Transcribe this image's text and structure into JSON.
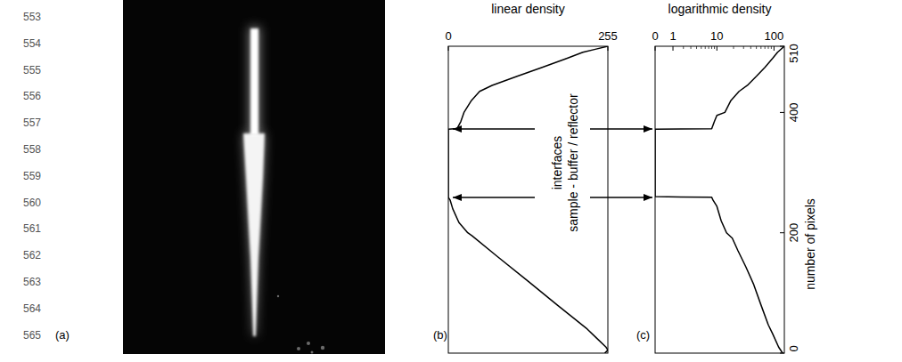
{
  "line_numbers": [
    553,
    554,
    555,
    556,
    557,
    558,
    559,
    560,
    561,
    562,
    563,
    564,
    565
  ],
  "panels": [
    "(a)",
    "(b)",
    "(c)"
  ],
  "annotation": [
    "interfaces",
    "sample - buffer / reflector"
  ],
  "chart_data": [
    {
      "type": "line",
      "orientation": "horizontal",
      "y_label": "linear density",
      "color": "#000000",
      "x": [
        0,
        5,
        10,
        25,
        40,
        80,
        120,
        160,
        195,
        200,
        217,
        240,
        254,
        259,
        372,
        373,
        385,
        400,
        420,
        435,
        445,
        460,
        475,
        490,
        500,
        505,
        510
      ],
      "values": [
        250,
        255,
        252,
        237,
        222,
        174,
        127,
        79,
        38,
        31,
        17,
        7,
        3,
        0,
        0,
        14,
        20,
        25,
        37,
        50,
        70,
        110,
        150,
        190,
        215,
        235,
        255
      ],
      "xlim": [
        0,
        510
      ],
      "ylim": [
        0,
        255
      ],
      "yticks": [
        0,
        255
      ],
      "tick_labels": "y"
    },
    {
      "type": "line",
      "orientation": "horizontal",
      "log": "y",
      "y_label": "logarithmic density",
      "x_label": "number of pixels",
      "color": "#000000",
      "x": [
        0,
        10,
        32,
        47,
        80,
        114,
        143,
        170,
        191,
        200,
        220,
        244,
        254,
        259,
        260,
        372,
        373,
        385,
        395,
        400,
        420,
        435,
        445,
        460,
        475,
        490,
        500,
        510
      ],
      "values": [
        140,
        120,
        95,
        80,
        60,
        45,
        33,
        24,
        19,
        15,
        12,
        10,
        8.5,
        8,
        0,
        0,
        8,
        9,
        10,
        14,
        18,
        25,
        35,
        50,
        70,
        95,
        115,
        150
      ],
      "xlim": [
        0,
        510
      ],
      "xticks": [
        0,
        200,
        400,
        510
      ],
      "ylim": [
        0,
        150
      ],
      "yticks": [
        0,
        1,
        10,
        100
      ]
    }
  ]
}
